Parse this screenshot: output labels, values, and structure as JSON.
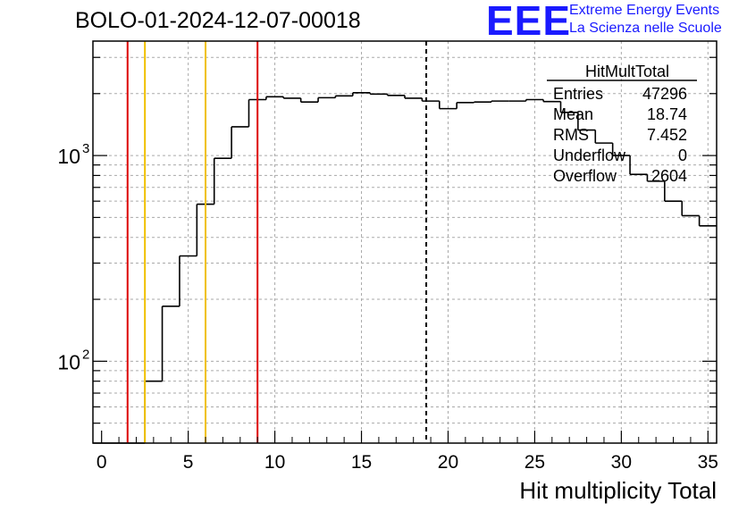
{
  "header": {
    "title": "BOLO-01-2024-12-07-00018",
    "logo_text": "EEE",
    "logo_line1": "Extreme Energy Events",
    "logo_line2": "La Scienza nelle Scuole",
    "logo_color": "#1a1aff"
  },
  "stats_box": {
    "name": "HitMultTotal",
    "rows": [
      {
        "label": "Entries",
        "value": "47296"
      },
      {
        "label": "Mean",
        "value": "18.74"
      },
      {
        "label": "RMS",
        "value": "7.452"
      },
      {
        "label": "Underflow",
        "value": "0"
      },
      {
        "label": "Overflow",
        "value": "2604"
      }
    ]
  },
  "chart_data": {
    "type": "bar",
    "title": "BOLO-01-2024-12-07-00018",
    "xlabel": "Hit multiplicity Total",
    "ylabel": "",
    "yscale": "log",
    "xlim": [
      -0.5,
      35.5
    ],
    "ylim": [
      40,
      3600
    ],
    "grid": true,
    "x_ticks": [
      0,
      5,
      10,
      15,
      20,
      25,
      30,
      35
    ],
    "y_tick_labels": [
      {
        "value": 100,
        "label": "10",
        "exponent": "2"
      },
      {
        "value": 1000,
        "label": "10",
        "exponent": "3"
      }
    ],
    "bin_width": 1,
    "bin_edges": [
      -0.5,
      35.5
    ],
    "values": [
      0,
      0,
      0,
      80,
      185,
      325,
      580,
      970,
      1380,
      1870,
      1930,
      1900,
      1820,
      1910,
      1950,
      2020,
      1990,
      1960,
      1900,
      1840,
      1690,
      1810,
      1820,
      1840,
      1840,
      1870,
      1830,
      1620,
      1330,
      1150,
      1000,
      810,
      750,
      600,
      510,
      455
    ],
    "vertical_lines": [
      {
        "x": 1.5,
        "color": "#dd0000",
        "style": "solid"
      },
      {
        "x": 2.5,
        "color": "#f0c000",
        "style": "solid"
      },
      {
        "x": 6.0,
        "color": "#f0c000",
        "style": "solid"
      },
      {
        "x": 9.0,
        "color": "#dd0000",
        "style": "solid"
      },
      {
        "x": 18.74,
        "color": "#000000",
        "style": "dashed"
      }
    ]
  }
}
